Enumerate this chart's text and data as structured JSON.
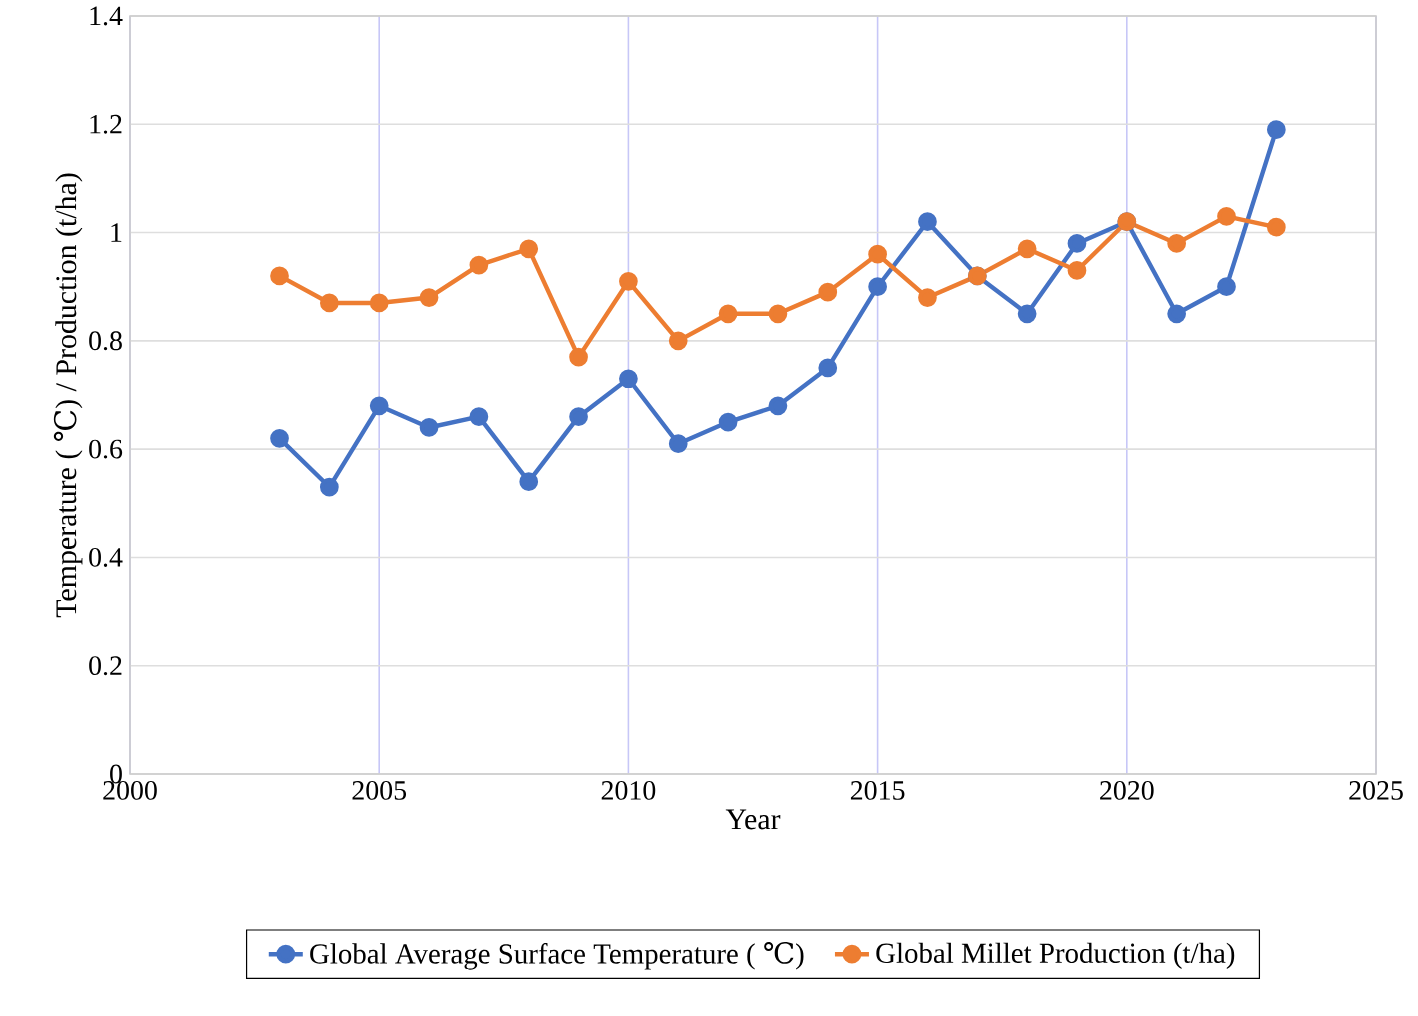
{
  "chart_data": {
    "type": "line",
    "xlabel": "Year",
    "ylabel": "Temperature ( ℃) / Production (t/ha)",
    "x": [
      2003,
      2004,
      2005,
      2006,
      2007,
      2008,
      2009,
      2010,
      2011,
      2012,
      2013,
      2014,
      2015,
      2016,
      2017,
      2018,
      2019,
      2020,
      2021,
      2022,
      2023
    ],
    "series": [
      {
        "name": "Global Average Surface Temperature ( ℃)",
        "color": "#4472c4",
        "values": [
          0.62,
          0.53,
          0.68,
          0.64,
          0.66,
          0.54,
          0.66,
          0.73,
          0.61,
          0.65,
          0.68,
          0.75,
          0.9,
          1.02,
          0.92,
          0.85,
          0.98,
          1.02,
          0.85,
          0.9,
          1.19
        ]
      },
      {
        "name": "Global Millet Production (t/ha)",
        "color": "#ed7d31",
        "values": [
          0.92,
          0.87,
          0.87,
          0.88,
          0.94,
          0.97,
          0.77,
          0.91,
          0.8,
          0.85,
          0.85,
          0.89,
          0.96,
          0.88,
          0.92,
          0.97,
          0.93,
          1.02,
          0.98,
          1.03,
          1.01
        ]
      }
    ],
    "xlim": [
      2000,
      2025
    ],
    "xticks": [
      2000,
      2005,
      2010,
      2015,
      2020,
      2025
    ],
    "ylim": [
      0,
      1.4
    ],
    "yticks": [
      0,
      0.2,
      0.4,
      0.6,
      0.8,
      1,
      1.2,
      1.4
    ],
    "grid": true,
    "legend": "bottom",
    "marker": "circle",
    "line_style": "solid"
  }
}
